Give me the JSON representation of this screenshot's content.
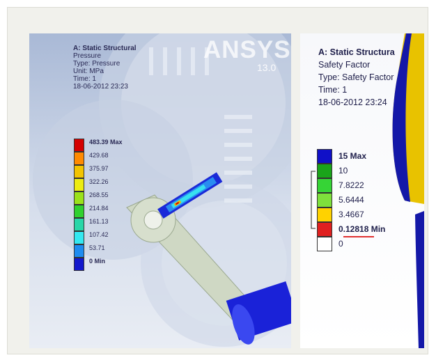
{
  "left_panel": {
    "title": "A: Static Structural",
    "lines": [
      "Pressure",
      "Type: Pressure",
      "Unit: MPa",
      "Time: 1",
      "18-06-2012 23:23"
    ],
    "brand": "ANSYS",
    "version": "13.0",
    "legend": {
      "levels": [
        {
          "value": "483.39 Max",
          "color": "#d40000"
        },
        {
          "value": "429.68",
          "color": "#ff8a00"
        },
        {
          "value": "375.97",
          "color": "#f2c400"
        },
        {
          "value": "322.26",
          "color": "#ecec12"
        },
        {
          "value": "268.55",
          "color": "#9ae21a"
        },
        {
          "value": "214.84",
          "color": "#2fd12f"
        },
        {
          "value": "161.13",
          "color": "#28d6a8"
        },
        {
          "value": "107.42",
          "color": "#34e8f0"
        },
        {
          "value": "53.71",
          "color": "#1e8cf0"
        },
        {
          "value": "0 Min",
          "color": "#1218cc"
        }
      ]
    }
  },
  "right_panel": {
    "title": "A: Static Structura",
    "lines": [
      "Safety Factor",
      "Type: Safety Factor",
      "Time: 1",
      "18-06-2012 23:24"
    ],
    "legend": {
      "levels": [
        {
          "value": "15 Max",
          "color": "#1010c8"
        },
        {
          "value": "10",
          "color": "#1aa41a"
        },
        {
          "value": "7.8222",
          "color": "#36d436"
        },
        {
          "value": "5.6444",
          "color": "#7ee03c"
        },
        {
          "value": "3.4667",
          "color": "#ffd200"
        },
        {
          "value": "0.12818 Min",
          "color": "#e02020"
        },
        {
          "value": "0",
          "color": "#ffffff"
        }
      ]
    }
  }
}
